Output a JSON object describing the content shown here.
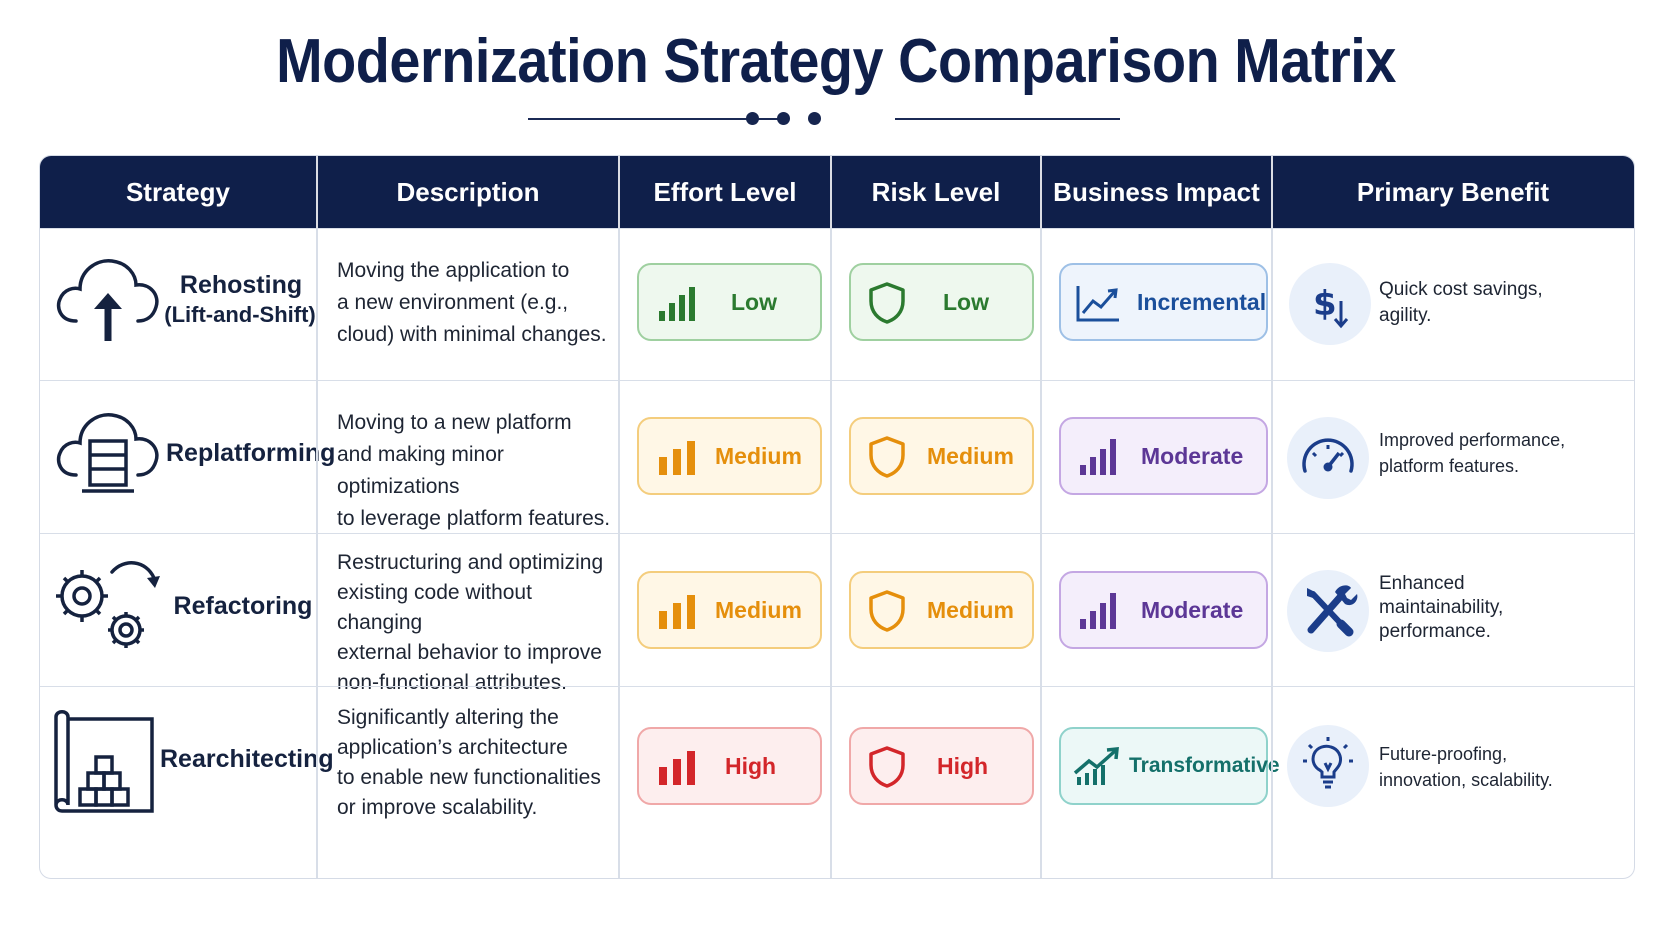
{
  "title": "Modernization Strategy Comparison Matrix",
  "headers": [
    "Strategy",
    "Description",
    "Effort Level",
    "Risk Level",
    "Business Impact",
    "Primary Benefit"
  ],
  "rows": [
    {
      "strategy": "Rehosting",
      "strategy_sub": "(Lift-and-Shift)",
      "strategy_icon": "cloud-upload-icon",
      "description": [
        "Moving the application to",
        "a new environment (e.g.,",
        "cloud) with minimal changes."
      ],
      "effort": "Low",
      "effort_color": "#2b7a2f",
      "risk": "Low",
      "risk_color": "#2b7a2f",
      "impact": "Incremental",
      "impact_icon": "line-trend-icon",
      "impact_color": "#1b4f9b",
      "benefit": [
        "Quick cost savings,",
        "agility."
      ],
      "benefit_icon": "dollar-down-icon"
    },
    {
      "strategy": "Replatforming",
      "strategy_sub": "",
      "strategy_icon": "cloud-server-icon",
      "description": [
        "Moving to a new platform",
        "and making minor optimizations",
        "to leverage platform features."
      ],
      "effort": "Medium",
      "effort_color": "#e58f0c",
      "risk": "Medium",
      "risk_color": "#e58f0c",
      "impact": "Moderate",
      "impact_icon": "bar-chart-icon",
      "impact_color": "#5c3796",
      "benefit": [
        "Improved performance,",
        "platform features."
      ],
      "benefit_icon": "speedometer-icon"
    },
    {
      "strategy": "Refactoring",
      "strategy_sub": "",
      "strategy_icon": "gears-icon",
      "description": [
        "Restructuring and optimizing",
        "existing code without changing",
        "external behavior to improve",
        "non-functional attributes."
      ],
      "effort": "Medium",
      "effort_color": "#e58f0c",
      "risk": "Medium",
      "risk_color": "#e58f0c",
      "impact": "Moderate",
      "impact_icon": "bar-chart-icon",
      "impact_color": "#5c3796",
      "benefit": [
        "Enhanced",
        "maintainability,",
        "performance."
      ],
      "benefit_icon": "wrench-screwdriver-icon"
    },
    {
      "strategy": "Rearchitecting",
      "strategy_sub": "",
      "strategy_icon": "blueprint-icon",
      "description": [
        "Significantly altering the",
        "application’s architecture",
        "to enable new functionalities",
        "or improve scalability."
      ],
      "effort": "High",
      "effort_color": "#d3262a",
      "risk": "High",
      "risk_color": "#d3262a",
      "impact": "Transformative",
      "impact_icon": "growth-arrow-icon",
      "impact_color": "#14706a",
      "benefit": [
        "Future-proofing,",
        "innovation, scalability."
      ],
      "benefit_icon": "lightbulb-icon"
    }
  ]
}
